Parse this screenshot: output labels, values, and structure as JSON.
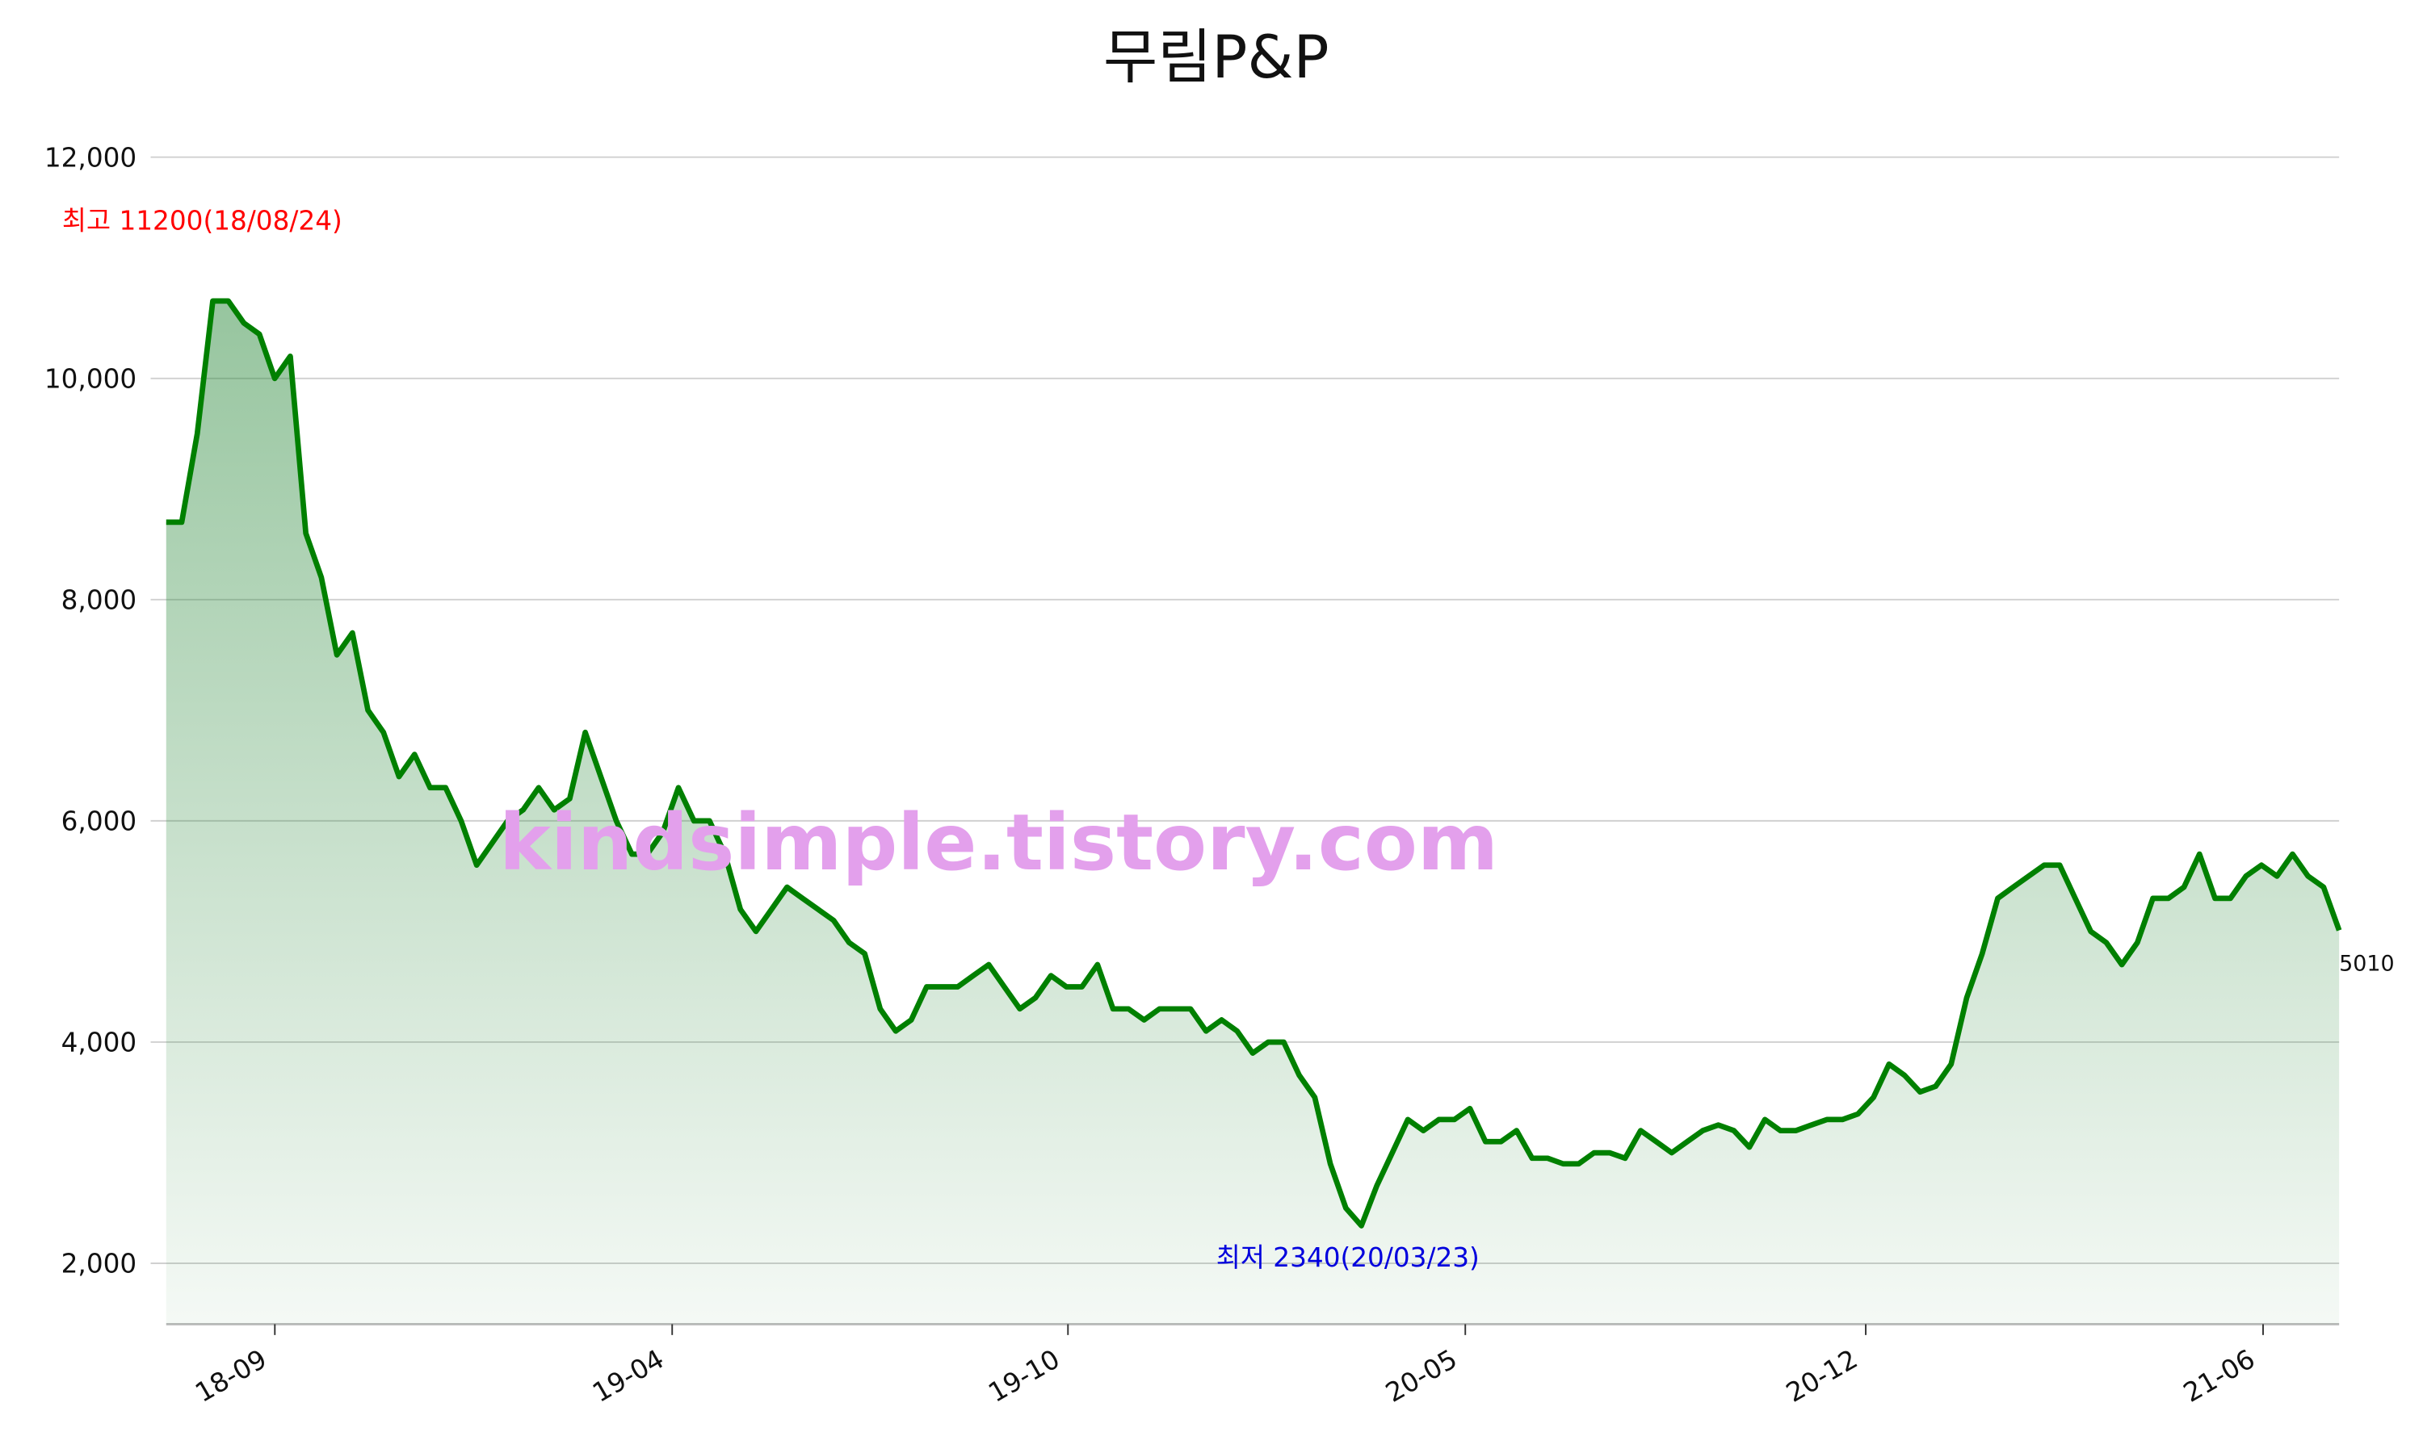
{
  "chart_data": {
    "type": "line",
    "title": "무림P&P",
    "watermark": "kindsimple.tistory.com",
    "color": "#008000",
    "grid": true,
    "values": [
      8700,
      8700,
      9500,
      10700,
      10700,
      10500,
      10400,
      10000,
      10200,
      8600,
      8200,
      7500,
      7700,
      7000,
      6800,
      6400,
      6600,
      6300,
      6300,
      6000,
      5600,
      5800,
      6000,
      6100,
      6300,
      6100,
      6200,
      6800,
      6400,
      6000,
      5700,
      5700,
      5900,
      6300,
      6000,
      6000,
      5700,
      5200,
      5000,
      5200,
      5400,
      5300,
      5200,
      5100,
      4900,
      4800,
      4300,
      4100,
      4200,
      4500,
      4500,
      4500,
      4600,
      4700,
      4500,
      4300,
      4400,
      4600,
      4500,
      4500,
      4700,
      4300,
      4300,
      4200,
      4300,
      4300,
      4300,
      4100,
      4200,
      4100,
      3900,
      4000,
      4000,
      3700,
      3500,
      2900,
      2500,
      2340,
      2700,
      3000,
      3300,
      3200,
      3300,
      3300,
      3400,
      3100,
      3100,
      3200,
      2950,
      2950,
      2900,
      2900,
      3000,
      3000,
      2950,
      3200,
      3100,
      3000,
      3100,
      3200,
      3250,
      3200,
      3050,
      3300,
      3200,
      3200,
      3250,
      3300,
      3300,
      3350,
      3500,
      3800,
      3700,
      3550,
      3600,
      3800,
      4400,
      4800,
      5300,
      5400,
      5500,
      5600,
      5600,
      5300,
      5000,
      4900,
      4700,
      4900,
      5300,
      5300,
      5400,
      5700,
      5300,
      5300,
      5500,
      5600,
      5500,
      5700,
      5500,
      5400,
      5010
    ],
    "xlim": [
      0,
      140
    ],
    "xticks": [
      {
        "value": 7,
        "label": "18-09"
      },
      {
        "value": 32.6,
        "label": "19-04"
      },
      {
        "value": 58.1,
        "label": "19-10"
      },
      {
        "value": 83.7,
        "label": "20-05"
      },
      {
        "value": 109.5,
        "label": "20-12"
      },
      {
        "value": 135.1,
        "label": "21-06"
      }
    ],
    "ylim": [
      1450,
      12200
    ],
    "yticks": [
      {
        "value": 2000,
        "label": "2,000"
      },
      {
        "value": 4000,
        "label": "4,000"
      },
      {
        "value": 6000,
        "label": "6,000"
      },
      {
        "value": 8000,
        "label": "8,000"
      },
      {
        "value": 10000,
        "label": "10,000"
      },
      {
        "value": 12000,
        "label": "12,000"
      }
    ],
    "annotations": [
      {
        "text": "최고 11200(18/08/24)",
        "color": "#ff0000"
      },
      {
        "text": "최저 2340(20/03/23)",
        "color": "#0000dd"
      }
    ]
  }
}
